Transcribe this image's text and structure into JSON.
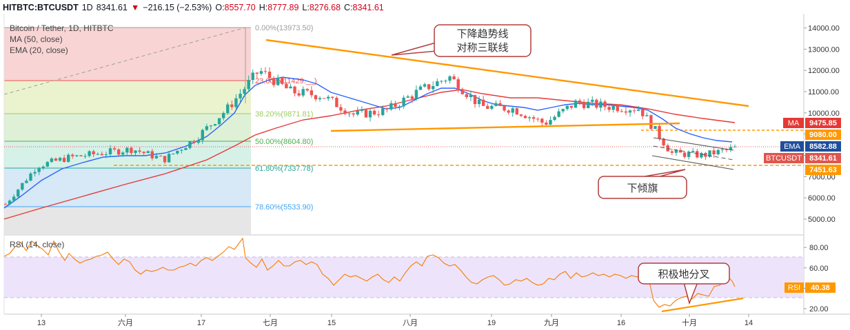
{
  "header": {
    "symbol": "HITBTC:BTCUSDT",
    "interval": "1D",
    "last": "8341.61",
    "arrow": "▼",
    "change": "−216.15 (−2.53%)",
    "o_label": "O:",
    "o_value": "8557.70",
    "h_label": "H:",
    "h_value": "8777.89",
    "l_label": "L:",
    "l_value": "8276.68",
    "c_label": "C:",
    "c_value": "8341.61"
  },
  "legend": {
    "title": "Bitcoin / Tether, 1D, HITBTC",
    "ma": "MA (50, close)",
    "ema": "EMA (20, close)",
    "rsi": "RSI (14, close)"
  },
  "annotations": {
    "triangle_line1": "下降趋势线",
    "triangle_line2": "对称三联线",
    "flag": "下倾旗",
    "divergence": "积极地分叉"
  },
  "price_tags": {
    "ma": {
      "name": "MA",
      "value": "9475.85",
      "color": "#e53935"
    },
    "level_9080": {
      "value": "9080.00",
      "color": "#ff9800"
    },
    "ema": {
      "name": "EMA",
      "value": "8582.88",
      "color": "#1e4e9c"
    },
    "last": {
      "name": "BTCUSDT",
      "value": "8341.61",
      "color": "#e0554f"
    },
    "level_7451": {
      "value": "7451.63",
      "color": "#ff9800"
    },
    "rsi": {
      "name": "RSI",
      "value": "40.38",
      "color": "#ff9800"
    }
  },
  "colors": {
    "up": "#26a69a",
    "down": "#ef5350",
    "ma": "#e53935",
    "ema": "#2962ff",
    "trend": "#ff9800",
    "rsi": "#f57c00",
    "annotation_border": "#b33b3b"
  },
  "chart_data": [
    {
      "type": "candlestick",
      "title": "Bitcoin / Tether, 1D, HITBTC",
      "y_axis": {
        "ticks": [
          5000,
          6000,
          7000,
          8000,
          9000,
          10000,
          11000,
          12000,
          13000,
          14000
        ],
        "tick_labels": [
          "5000.00",
          "6000.00",
          "7000.00",
          "8000.00",
          "9000.00",
          "10000.00",
          "11000.00",
          "12000.00",
          "13000.00",
          "14000.00"
        ],
        "range": [
          4000,
          14400
        ]
      },
      "x_axis": {
        "tick_labels": [
          "13",
          "六月",
          "17",
          "七月",
          "15",
          "八月",
          "19",
          "九月",
          "16",
          "十月",
          "14"
        ]
      },
      "fibonacci": [
        {
          "ratio": "0.00%",
          "price": 13973.5,
          "label": "0.00%(13973.50)"
        },
        {
          "ratio": "23.60%",
          "price": 11429,
          "label": "23.60%(11429.__)"
        },
        {
          "ratio": "38.20%",
          "price": 9871.81,
          "label": "38.20%(9871.81)"
        },
        {
          "ratio": "50.00%",
          "price": 8604.8,
          "label": "50.00%(8604.80)"
        },
        {
          "ratio": "61.80%",
          "price": 7337.78,
          "label": "61.80%(7337.78)"
        },
        {
          "ratio": "78.60%",
          "price": 5533.9,
          "label": "78.60%(5533.90)"
        }
      ],
      "series": [
        {
          "name": "BTCUSDT",
          "x": [
            "05-01",
            "05-08",
            "05-15",
            "05-22",
            "05-29",
            "06-05",
            "06-12",
            "06-19",
            "06-26",
            "07-03",
            "07-10",
            "07-17",
            "07-24",
            "07-31",
            "08-07",
            "08-14",
            "08-21",
            "08-28",
            "09-04",
            "09-11",
            "09-18",
            "09-25",
            "10-02",
            "10-09"
          ],
          "close": [
            5700,
            7500,
            7900,
            8100,
            8300,
            7800,
            8800,
            10200,
            12000,
            11000,
            10800,
            9900,
            10100,
            11000,
            11700,
            10300,
            10200,
            9500,
            10500,
            10300,
            10200,
            8100,
            8000,
            8341.61
          ]
        },
        {
          "name": "MA (50, close)",
          "x": [
            "05-01",
            "06-01",
            "07-01",
            "08-01",
            "09-01",
            "10-01",
            "10-10"
          ],
          "values": [
            5300,
            6700,
            8500,
            9900,
            10400,
            10000,
            9475.85
          ]
        },
        {
          "name": "EMA (20, close)",
          "x": [
            "05-01",
            "06-01",
            "07-01",
            "08-01",
            "09-01",
            "10-01",
            "10-10"
          ],
          "values": [
            5600,
            7700,
            10500,
            10400,
            10000,
            8800,
            8582.88
          ]
        }
      ],
      "levels": [
        9080.0,
        7451.63
      ]
    },
    {
      "type": "line",
      "title": "RSI (14, close)",
      "y_axis": {
        "ticks": [
          20,
          40,
          60,
          80
        ],
        "tick_labels": [
          "20.00",
          "40.00",
          "60.00",
          "80.00"
        ],
        "range": [
          12,
          96
        ],
        "bands": [
          30,
          70
        ]
      },
      "series": [
        {
          "name": "RSI (14, close)",
          "x": [
            "05-01",
            "05-15",
            "06-01",
            "06-15",
            "07-01",
            "07-15",
            "08-01",
            "08-15",
            "09-01",
            "09-15",
            "09-24",
            "10-01",
            "10-10"
          ],
          "values": [
            70,
            80,
            62,
            66,
            88,
            52,
            63,
            47,
            50,
            53,
            28,
            24,
            40.38
          ]
        }
      ]
    }
  ]
}
